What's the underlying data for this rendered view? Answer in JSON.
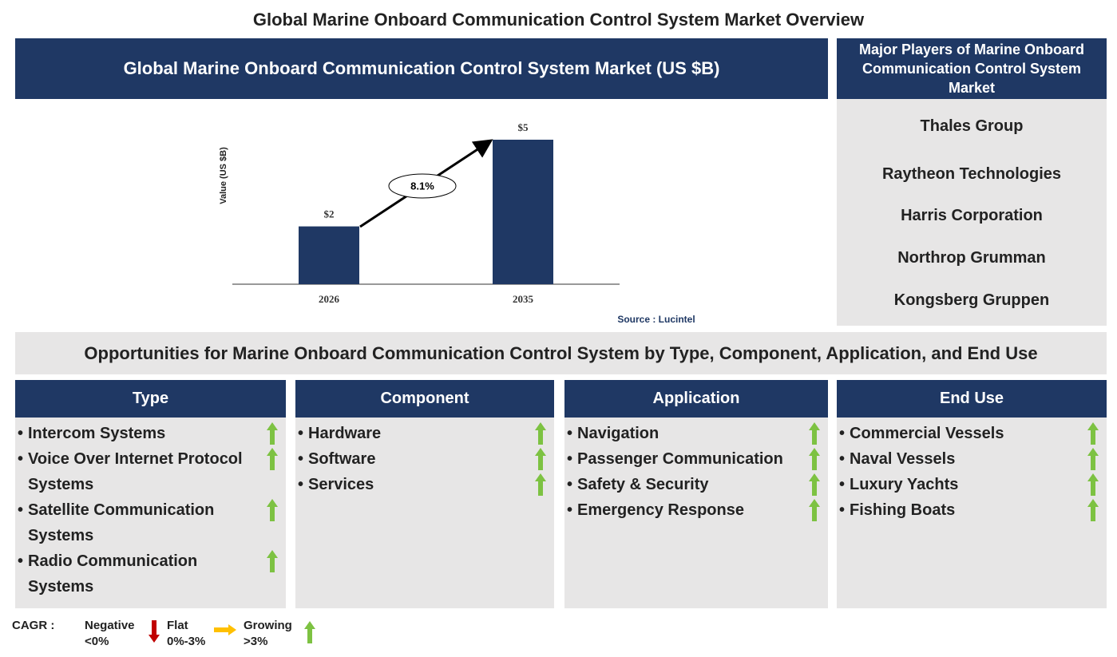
{
  "title": "Global Marine Onboard Communication Control System Market Overview",
  "chart_data": {
    "type": "bar",
    "title": "Global Marine Onboard Communication Control System Market (US $B)",
    "y_label": "Value (US $B)",
    "categories": [
      "2026",
      "2035"
    ],
    "values": [
      2,
      5
    ],
    "value_labels": [
      "$2",
      "$5"
    ],
    "color": "#1f3864",
    "ylim": [
      0,
      5
    ],
    "cagr_label": "8.1%",
    "source": "Source : Lucintel"
  },
  "players": {
    "title": "Major Players of Marine Onboard Communication Control System Market",
    "items": [
      "Thales Group",
      "Raytheon Technologies",
      "Harris Corporation",
      "Northrop Grumman",
      "Kongsberg Gruppen"
    ]
  },
  "opportunities": {
    "title": "Opportunities for Marine Onboard Communication Control System by Type, Component, Application, and End Use",
    "columns": [
      {
        "name": "Type",
        "items": [
          "Intercom Systems",
          "Voice Over Internet Protocol Systems",
          "Satellite Communication Systems",
          "Radio Communication Systems"
        ]
      },
      {
        "name": "Component",
        "items": [
          "Hardware",
          "Software",
          "Services"
        ]
      },
      {
        "name": "Application",
        "items": [
          "Navigation",
          "Passenger Communication",
          "Safety & Security",
          "Emergency Response"
        ]
      },
      {
        "name": "End Use",
        "items": [
          "Commercial Vessels",
          "Naval Vessels",
          "Luxury Yachts",
          "Fishing Boats"
        ]
      }
    ]
  },
  "legend": {
    "label": "CAGR :",
    "items": [
      {
        "name": "Negative",
        "range": "<0%"
      },
      {
        "name": "Flat",
        "range": "0%-3%"
      },
      {
        "name": "Growing",
        "range": ">3%"
      }
    ]
  }
}
